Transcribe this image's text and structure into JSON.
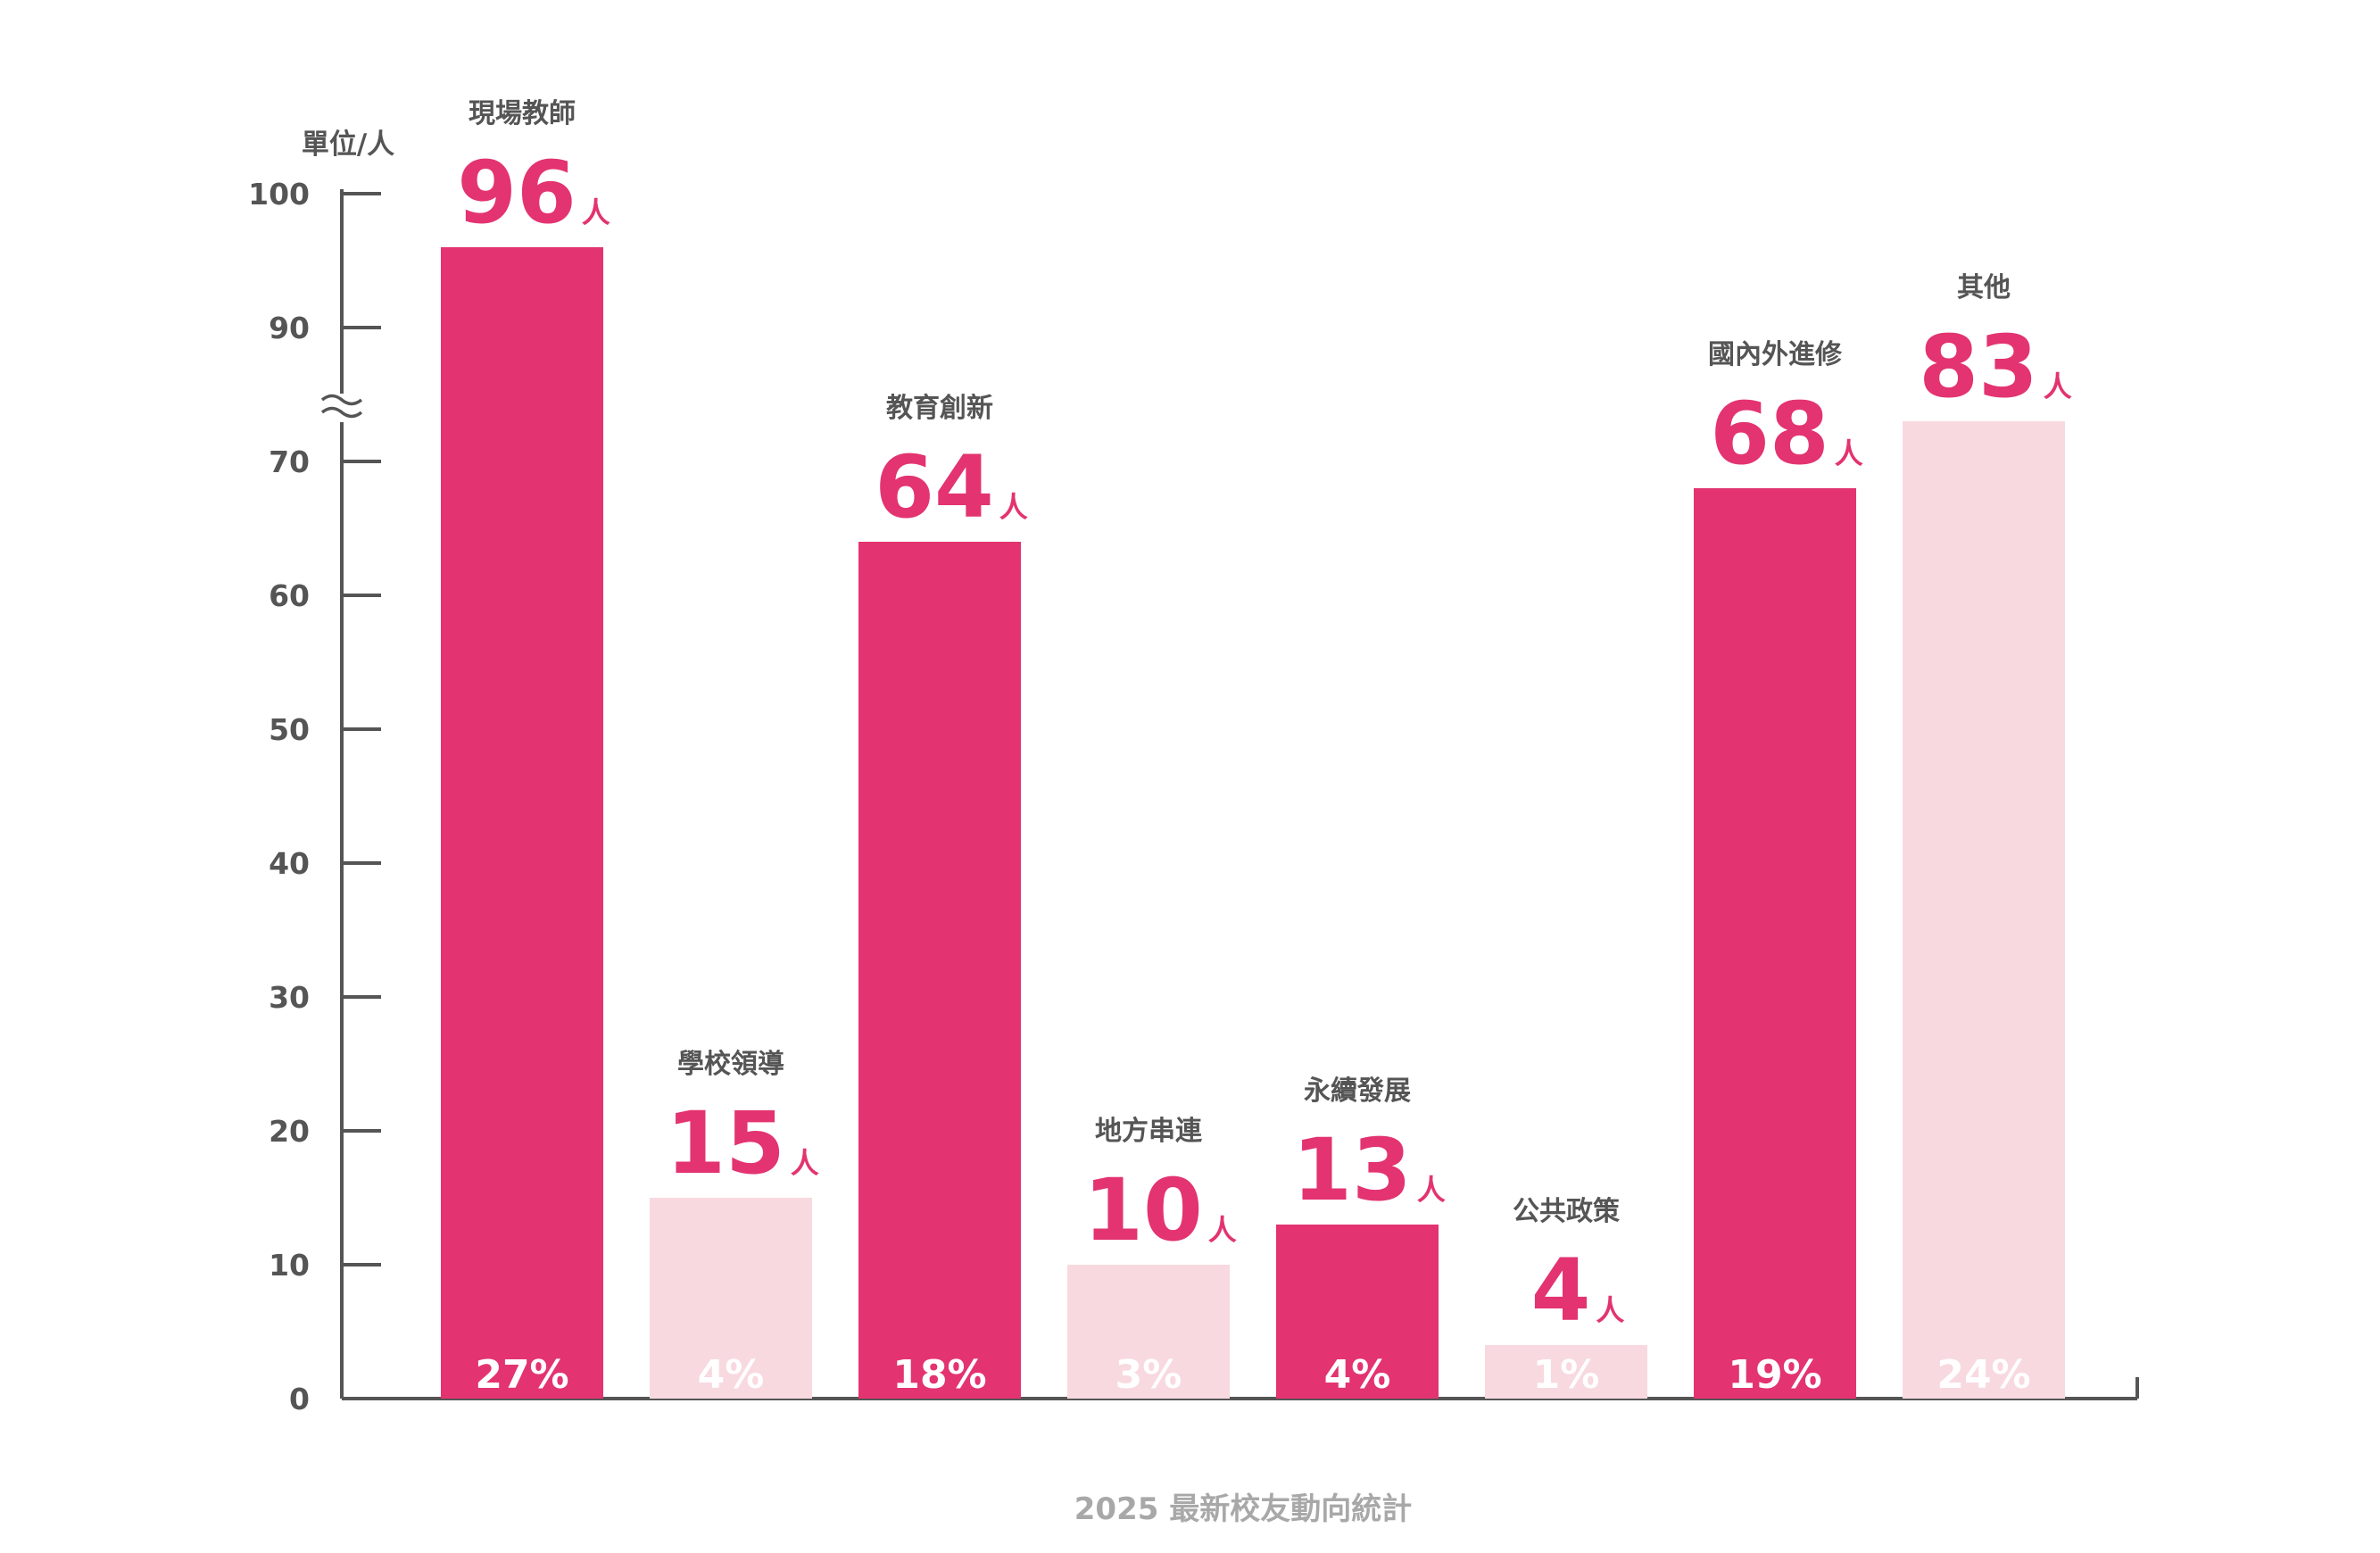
{
  "chart_data": {
    "type": "bar",
    "unit_label": "單位/人",
    "caption": "2025 最新校友動向統計",
    "ylim": [
      0,
      100
    ],
    "axis_break": "between 70 and 90",
    "y_ticks": [
      0,
      10,
      20,
      30,
      40,
      50,
      60,
      70,
      90,
      100
    ],
    "value_suffix": "人",
    "categories": [
      "現場教師",
      "學校領導",
      "教育創新",
      "地方串連",
      "永續發展",
      "公共政策",
      "國內外進修",
      "其他"
    ],
    "values": [
      96,
      15,
      64,
      10,
      13,
      4,
      68,
      83
    ],
    "percentages": [
      "27%",
      "4%",
      "18%",
      "3%",
      "4%",
      "1%",
      "19%",
      "24%"
    ],
    "bar_styles": [
      "dark",
      "light",
      "dark",
      "light",
      "dark",
      "light",
      "dark",
      "light"
    ],
    "grid": false,
    "legend": "none"
  },
  "colors": {
    "dark_bar": "#e33370",
    "light_bar": "#f8d9e0",
    "value_text": "#e33370",
    "axis": "#555555",
    "caption": "#a8a8a8"
  }
}
